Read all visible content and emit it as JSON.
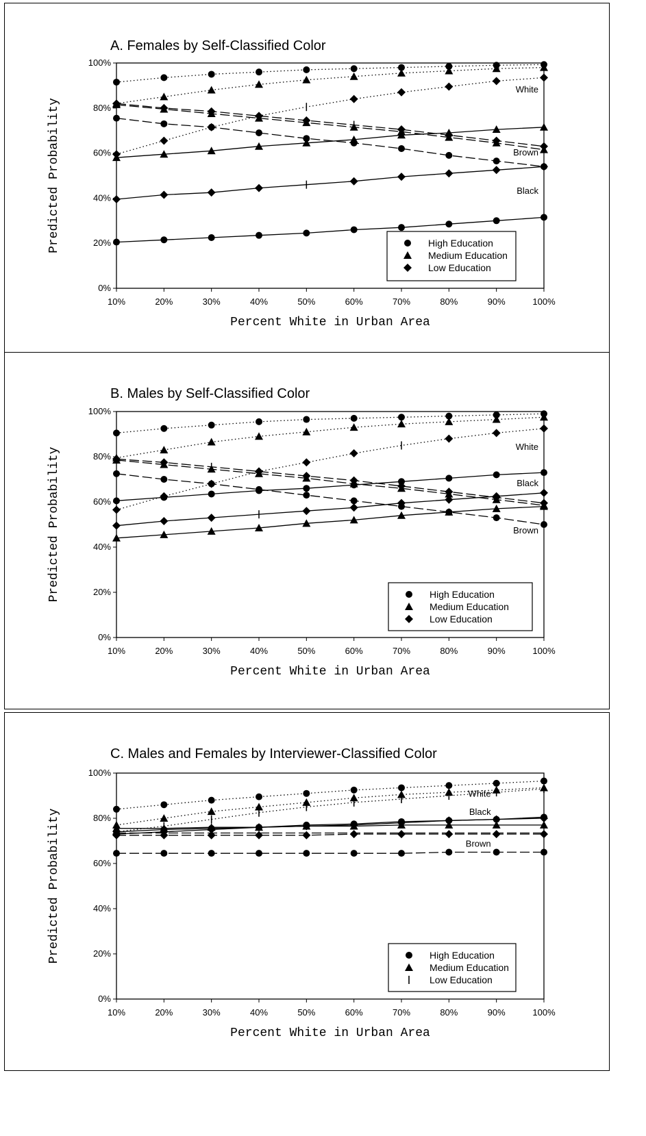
{
  "chart_data": [
    {
      "id": "A",
      "type": "line",
      "title": "A. Females by Self-Classified Color",
      "xlabel": "Percent White in Urban Area",
      "ylabel": "Predicted Probability",
      "x": [
        10,
        20,
        30,
        40,
        50,
        60,
        70,
        80,
        90,
        100
      ],
      "xticks": [
        "10%",
        "20%",
        "30%",
        "40%",
        "50%",
        "60%",
        "70%",
        "80%",
        "90%",
        "100%"
      ],
      "yticks": [
        "0%",
        "20%",
        "40%",
        "60%",
        "80%",
        "100%"
      ],
      "xlim": [
        10,
        100
      ],
      "ylim": [
        0,
        100
      ],
      "legend": {
        "position": "bottom-right",
        "entries": [
          {
            "label": "High Education",
            "marker": "circle"
          },
          {
            "label": "Medium Education",
            "marker": "triangle"
          },
          {
            "label": "Low Education",
            "marker": "diamond"
          }
        ]
      },
      "group_labels": [
        {
          "text": "White",
          "x": 100,
          "y": 87
        },
        {
          "text": "Brown",
          "x": 100,
          "y": 59
        },
        {
          "text": "Black",
          "x": 100,
          "y": 42
        }
      ],
      "series": [
        {
          "group": "White",
          "education": "High",
          "dash": "dot",
          "marker": "circle",
          "values": [
            91.5,
            93.5,
            95,
            96,
            97,
            97.5,
            98,
            98.5,
            99,
            99.3
          ]
        },
        {
          "group": "White",
          "education": "Medium",
          "dash": "dot",
          "marker": "triangle",
          "values": [
            82,
            85,
            88,
            90.5,
            92.5,
            94,
            95.5,
            96.5,
            97.5,
            98
          ]
        },
        {
          "group": "White",
          "education": "Low",
          "dash": "dot",
          "marker": "diamond",
          "plus_index": 4,
          "values": [
            59.5,
            65.5,
            71.5,
            76.5,
            80.5,
            84,
            87,
            89.5,
            92,
            93.5
          ]
        },
        {
          "group": "Brown",
          "education": "High",
          "dash": "dash",
          "marker": "circle",
          "values": [
            75.5,
            73,
            71.5,
            69,
            66.5,
            64.5,
            62,
            59,
            56.5,
            54
          ]
        },
        {
          "group": "Brown",
          "education": "Medium",
          "dash": "dash",
          "marker": "triangle",
          "values": [
            81.5,
            79.5,
            77.5,
            75.5,
            73.5,
            71.5,
            69.5,
            67,
            64.5,
            61.5
          ]
        },
        {
          "group": "Brown",
          "education": "Low",
          "dash": "dash",
          "marker": "diamond",
          "plus_index": 5,
          "values": [
            82,
            80,
            78.5,
            76.5,
            74.5,
            72.5,
            70.5,
            68,
            65.5,
            63
          ]
        },
        {
          "group": "Black",
          "education": "High",
          "dash": "solid",
          "marker": "circle",
          "values": [
            20.5,
            21.5,
            22.5,
            23.5,
            24.5,
            26,
            27,
            28.5,
            30,
            31.5
          ]
        },
        {
          "group": "Black",
          "education": "Medium",
          "dash": "solid",
          "marker": "triangle",
          "values": [
            58,
            59.5,
            61,
            63,
            64.5,
            66,
            68,
            69,
            70.5,
            71.5
          ]
        },
        {
          "group": "Black",
          "education": "Low",
          "dash": "solid",
          "marker": "diamond",
          "plus_index": 4,
          "values": [
            39.5,
            41.5,
            42.5,
            44.5,
            46,
            47.5,
            49.5,
            51,
            52.5,
            54
          ]
        }
      ]
    },
    {
      "id": "B",
      "type": "line",
      "title": "B. Males by Self-Classified Color",
      "xlabel": "Percent White in Urban Area",
      "ylabel": "Predicted Probability",
      "x": [
        10,
        20,
        30,
        40,
        50,
        60,
        70,
        80,
        90,
        100
      ],
      "xticks": [
        "10%",
        "20%",
        "30%",
        "40%",
        "50%",
        "60%",
        "70%",
        "80%",
        "90%",
        "100%"
      ],
      "yticks": [
        "0%",
        "20%",
        "40%",
        "60%",
        "80%",
        "100%"
      ],
      "xlim": [
        10,
        100
      ],
      "ylim": [
        0,
        100
      ],
      "legend": {
        "position": "bottom-right",
        "entries": [
          {
            "label": "High Education",
            "marker": "circle"
          },
          {
            "label": "Medium Education",
            "marker": "triangle"
          },
          {
            "label": "Low Education",
            "marker": "diamond"
          }
        ]
      },
      "group_labels": [
        {
          "text": "White",
          "x": 100,
          "y": 83
        },
        {
          "text": "Black",
          "x": 100,
          "y": 67
        },
        {
          "text": "Brown",
          "x": 100,
          "y": 46
        }
      ],
      "series": [
        {
          "group": "White",
          "education": "High",
          "dash": "dot",
          "marker": "circle",
          "values": [
            90.5,
            92.5,
            94,
            95.5,
            96.5,
            97,
            97.5,
            98,
            98.5,
            99
          ]
        },
        {
          "group": "White",
          "education": "Medium",
          "dash": "dot",
          "marker": "triangle",
          "values": [
            79.5,
            83,
            86.5,
            89,
            91,
            93,
            94.5,
            95.5,
            96.5,
            97.5
          ]
        },
        {
          "group": "White",
          "education": "Low",
          "dash": "dot",
          "marker": "diamond",
          "plus_index": 6,
          "values": [
            56.5,
            62.5,
            68,
            73.5,
            77.5,
            81.5,
            85,
            88,
            90.5,
            92.5
          ]
        },
        {
          "group": "Brown",
          "education": "High",
          "dash": "dash",
          "marker": "circle",
          "values": [
            72.5,
            70,
            68,
            65.5,
            63,
            60.5,
            58,
            55.5,
            53,
            50
          ]
        },
        {
          "group": "Brown",
          "education": "Medium",
          "dash": "dash",
          "marker": "triangle",
          "values": [
            78.5,
            76.5,
            74.5,
            72.5,
            70.5,
            68,
            66,
            63.5,
            61,
            58.5
          ]
        },
        {
          "group": "Brown",
          "education": "Low",
          "dash": "dash",
          "marker": "diamond",
          "plus_index": 2,
          "values": [
            79,
            77.5,
            75.5,
            73.5,
            71.5,
            69.5,
            67,
            64.5,
            62,
            59.5
          ]
        },
        {
          "group": "Black",
          "education": "High",
          "dash": "solid",
          "marker": "circle",
          "values": [
            60.5,
            62,
            63.5,
            65,
            66,
            67.5,
            69,
            70.5,
            72,
            73
          ]
        },
        {
          "group": "Black",
          "education": "Medium",
          "dash": "solid",
          "marker": "triangle",
          "values": [
            44,
            45.5,
            47,
            48.5,
            50.5,
            52,
            54,
            55.5,
            57,
            58
          ]
        },
        {
          "group": "Black",
          "education": "Low",
          "dash": "solid",
          "marker": "diamond",
          "plus_index": 3,
          "values": [
            49.5,
            51.5,
            53,
            54.5,
            56,
            57.5,
            59.5,
            61,
            62.5,
            64
          ]
        }
      ]
    },
    {
      "id": "C",
      "type": "line",
      "title": "C. Males and Females by Interviewer-Classified Color",
      "xlabel": "Percent White in Urban Area",
      "ylabel": "Predicted Probability",
      "x": [
        10,
        20,
        30,
        40,
        50,
        60,
        70,
        80,
        90,
        100
      ],
      "xticks": [
        "10%",
        "20%",
        "30%",
        "40%",
        "50%",
        "60%",
        "70%",
        "80%",
        "90%",
        "100%"
      ],
      "yticks": [
        "0%",
        "20%",
        "40%",
        "60%",
        "80%",
        "100%"
      ],
      "xlim": [
        10,
        100
      ],
      "ylim": [
        0,
        100
      ],
      "legend": {
        "position": "bottom-right",
        "entries": [
          {
            "label": "High Education",
            "marker": "circle"
          },
          {
            "label": "Medium Education",
            "marker": "triangle"
          },
          {
            "label": "Low Education",
            "marker": "bar"
          }
        ]
      },
      "group_labels": [
        {
          "text": "White",
          "x": 90,
          "y": 89.5
        },
        {
          "text": "Black",
          "x": 90,
          "y": 81.5
        },
        {
          "text": "Brown",
          "x": 90,
          "y": 67.5
        }
      ],
      "series": [
        {
          "group": "White",
          "education": "High",
          "dash": "dot",
          "marker": "circle",
          "values": [
            84,
            86,
            88,
            89.5,
            91,
            92.5,
            93.5,
            94.5,
            95.5,
            96.5
          ]
        },
        {
          "group": "White",
          "education": "Medium",
          "dash": "dot",
          "marker": "triangle",
          "values": [
            77,
            80,
            83,
            85,
            87,
            89,
            90.5,
            91.5,
            92.5,
            93.5
          ]
        },
        {
          "group": "White",
          "education": "Low",
          "dash": "dot",
          "marker": "bar",
          "values": [
            74,
            76.5,
            79.5,
            82.5,
            85,
            87,
            88.5,
            90,
            91.5,
            93
          ]
        },
        {
          "group": "Black",
          "education": "High",
          "dash": "solid",
          "marker": "circle",
          "values": [
            74,
            75,
            75.5,
            76,
            77,
            77.5,
            78.5,
            79,
            79.5,
            80.5
          ]
        },
        {
          "group": "Black",
          "education": "Medium",
          "dash": "solid",
          "marker": "triangle",
          "values": [
            75.5,
            75.5,
            76,
            76,
            76.5,
            76.5,
            77,
            77,
            77,
            77
          ]
        },
        {
          "group": "Black",
          "education": "Low",
          "dash": "solid",
          "marker": "diamond",
          "values": [
            73,
            74,
            75,
            76,
            76.5,
            77,
            78,
            79,
            79.5,
            80
          ]
        },
        {
          "group": "Brown",
          "education": "High",
          "dash": "dash",
          "marker": "circle",
          "values": [
            64.5,
            64.5,
            64.5,
            64.5,
            64.5,
            64.5,
            64.5,
            65,
            65,
            65
          ]
        },
        {
          "group": "Brown",
          "education": "Medium",
          "dash": "dash",
          "marker": "none",
          "values": [
            73.5,
            73.5,
            73.5,
            73.5,
            73.5,
            73.5,
            73.5,
            73.5,
            73.5,
            73.5
          ]
        },
        {
          "group": "Brown",
          "education": "Low",
          "dash": "dash",
          "marker": "diamond",
          "values": [
            72.5,
            72.5,
            72.5,
            72.5,
            72.5,
            73,
            73,
            73,
            73,
            73
          ]
        }
      ]
    }
  ]
}
